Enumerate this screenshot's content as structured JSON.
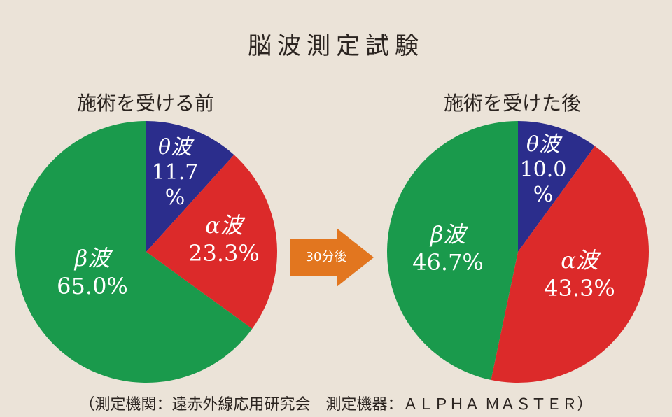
{
  "title": "脳波測定試験",
  "arrow_label": "30分後",
  "footer": "（測定機関：遠赤外線応用研究会　測定機器：ＡＬＰＨＡ ＭＡＳＴＥＲ）",
  "colors": {
    "background": "#ebe3d8",
    "theta": "#2b2d8c",
    "alpha": "#dc2a2a",
    "beta": "#1a9a4c",
    "arrow": "#e2761f"
  },
  "chart_data": [
    {
      "type": "pie",
      "title": "施術を受ける前",
      "unit": "%",
      "slices": [
        {
          "name": "θ波",
          "value": 11.7,
          "value_text": "11.7",
          "unit_text": "%",
          "color": "#2b2d8c"
        },
        {
          "name": "α波",
          "value": 23.3,
          "value_text": "23.3%",
          "color": "#dc2a2a"
        },
        {
          "name": "β波",
          "value": 65.0,
          "value_text": "65.0%",
          "color": "#1a9a4c"
        }
      ]
    },
    {
      "type": "pie",
      "title": "施術を受けた後",
      "unit": "%",
      "slices": [
        {
          "name": "θ波",
          "value": 10.0,
          "value_text": "10.0",
          "unit_text": "%",
          "color": "#2b2d8c"
        },
        {
          "name": "α波",
          "value": 43.3,
          "value_text": "43.3%",
          "color": "#dc2a2a"
        },
        {
          "name": "β波",
          "value": 46.7,
          "value_text": "46.7%",
          "color": "#1a9a4c"
        }
      ]
    }
  ]
}
